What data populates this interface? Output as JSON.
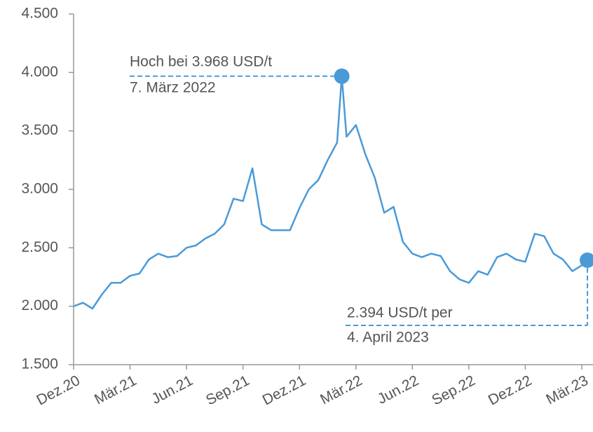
{
  "chart_data": {
    "type": "line",
    "color": "#4a9ad8",
    "x": [
      0,
      0.5,
      1,
      1.5,
      2,
      2.5,
      3,
      3.5,
      4,
      4.5,
      5,
      5.5,
      6,
      6.5,
      7,
      7.5,
      8,
      8.5,
      9,
      9.5,
      10,
      10.5,
      11,
      11.5,
      12,
      12.5,
      13,
      13.5,
      14,
      14.25,
      14.5,
      15,
      15.5,
      16,
      16.5,
      17,
      17.5,
      18,
      18.5,
      19,
      19.5,
      20,
      20.5,
      21,
      21.5,
      22,
      22.5,
      23,
      23.5,
      24,
      24.5,
      25,
      25.5,
      26,
      26.5,
      27,
      27.3
    ],
    "values": [
      2000,
      2030,
      1980,
      2100,
      2200,
      2200,
      2260,
      2280,
      2400,
      2450,
      2420,
      2430,
      2500,
      2520,
      2580,
      2620,
      2700,
      2920,
      2900,
      3180,
      2700,
      2650,
      2650,
      2650,
      2840,
      3000,
      3080,
      3250,
      3400,
      3968,
      3450,
      3550,
      3300,
      3100,
      2800,
      2850,
      2550,
      2450,
      2420,
      2450,
      2430,
      2300,
      2230,
      2200,
      2300,
      2270,
      2420,
      2450,
      2400,
      2380,
      2620,
      2600,
      2450,
      2400,
      2300,
      2350,
      2394
    ],
    "xlim": [
      0,
      27.5
    ],
    "xticks": [
      {
        "value": 0,
        "label": "Dez.20"
      },
      {
        "value": 3,
        "label": "Mär.21"
      },
      {
        "value": 6,
        "label": "Jun.21"
      },
      {
        "value": 9,
        "label": "Sep.21"
      },
      {
        "value": 12,
        "label": "Dez.21"
      },
      {
        "value": 15,
        "label": "Mär.22"
      },
      {
        "value": 18,
        "label": "Jun.22"
      },
      {
        "value": 21,
        "label": "Sep.22"
      },
      {
        "value": 24,
        "label": "Dez.22"
      },
      {
        "value": 27,
        "label": "Mär.23"
      }
    ],
    "ylim": [
      1500,
      4500
    ],
    "yticks": [
      {
        "value": 1500,
        "label": "1.500"
      },
      {
        "value": 2000,
        "label": "2.000"
      },
      {
        "value": 2500,
        "label": "2.500"
      },
      {
        "value": 3000,
        "label": "3.000"
      },
      {
        "value": 3500,
        "label": "3.500"
      },
      {
        "value": 4000,
        "label": "4.000"
      },
      {
        "value": 4500,
        "label": "4.500"
      }
    ],
    "annotations": [
      "Hoch bei 3.968 USD/t",
      "7. März 2022",
      "2.394 USD/t per",
      "4. April 2023"
    ]
  }
}
